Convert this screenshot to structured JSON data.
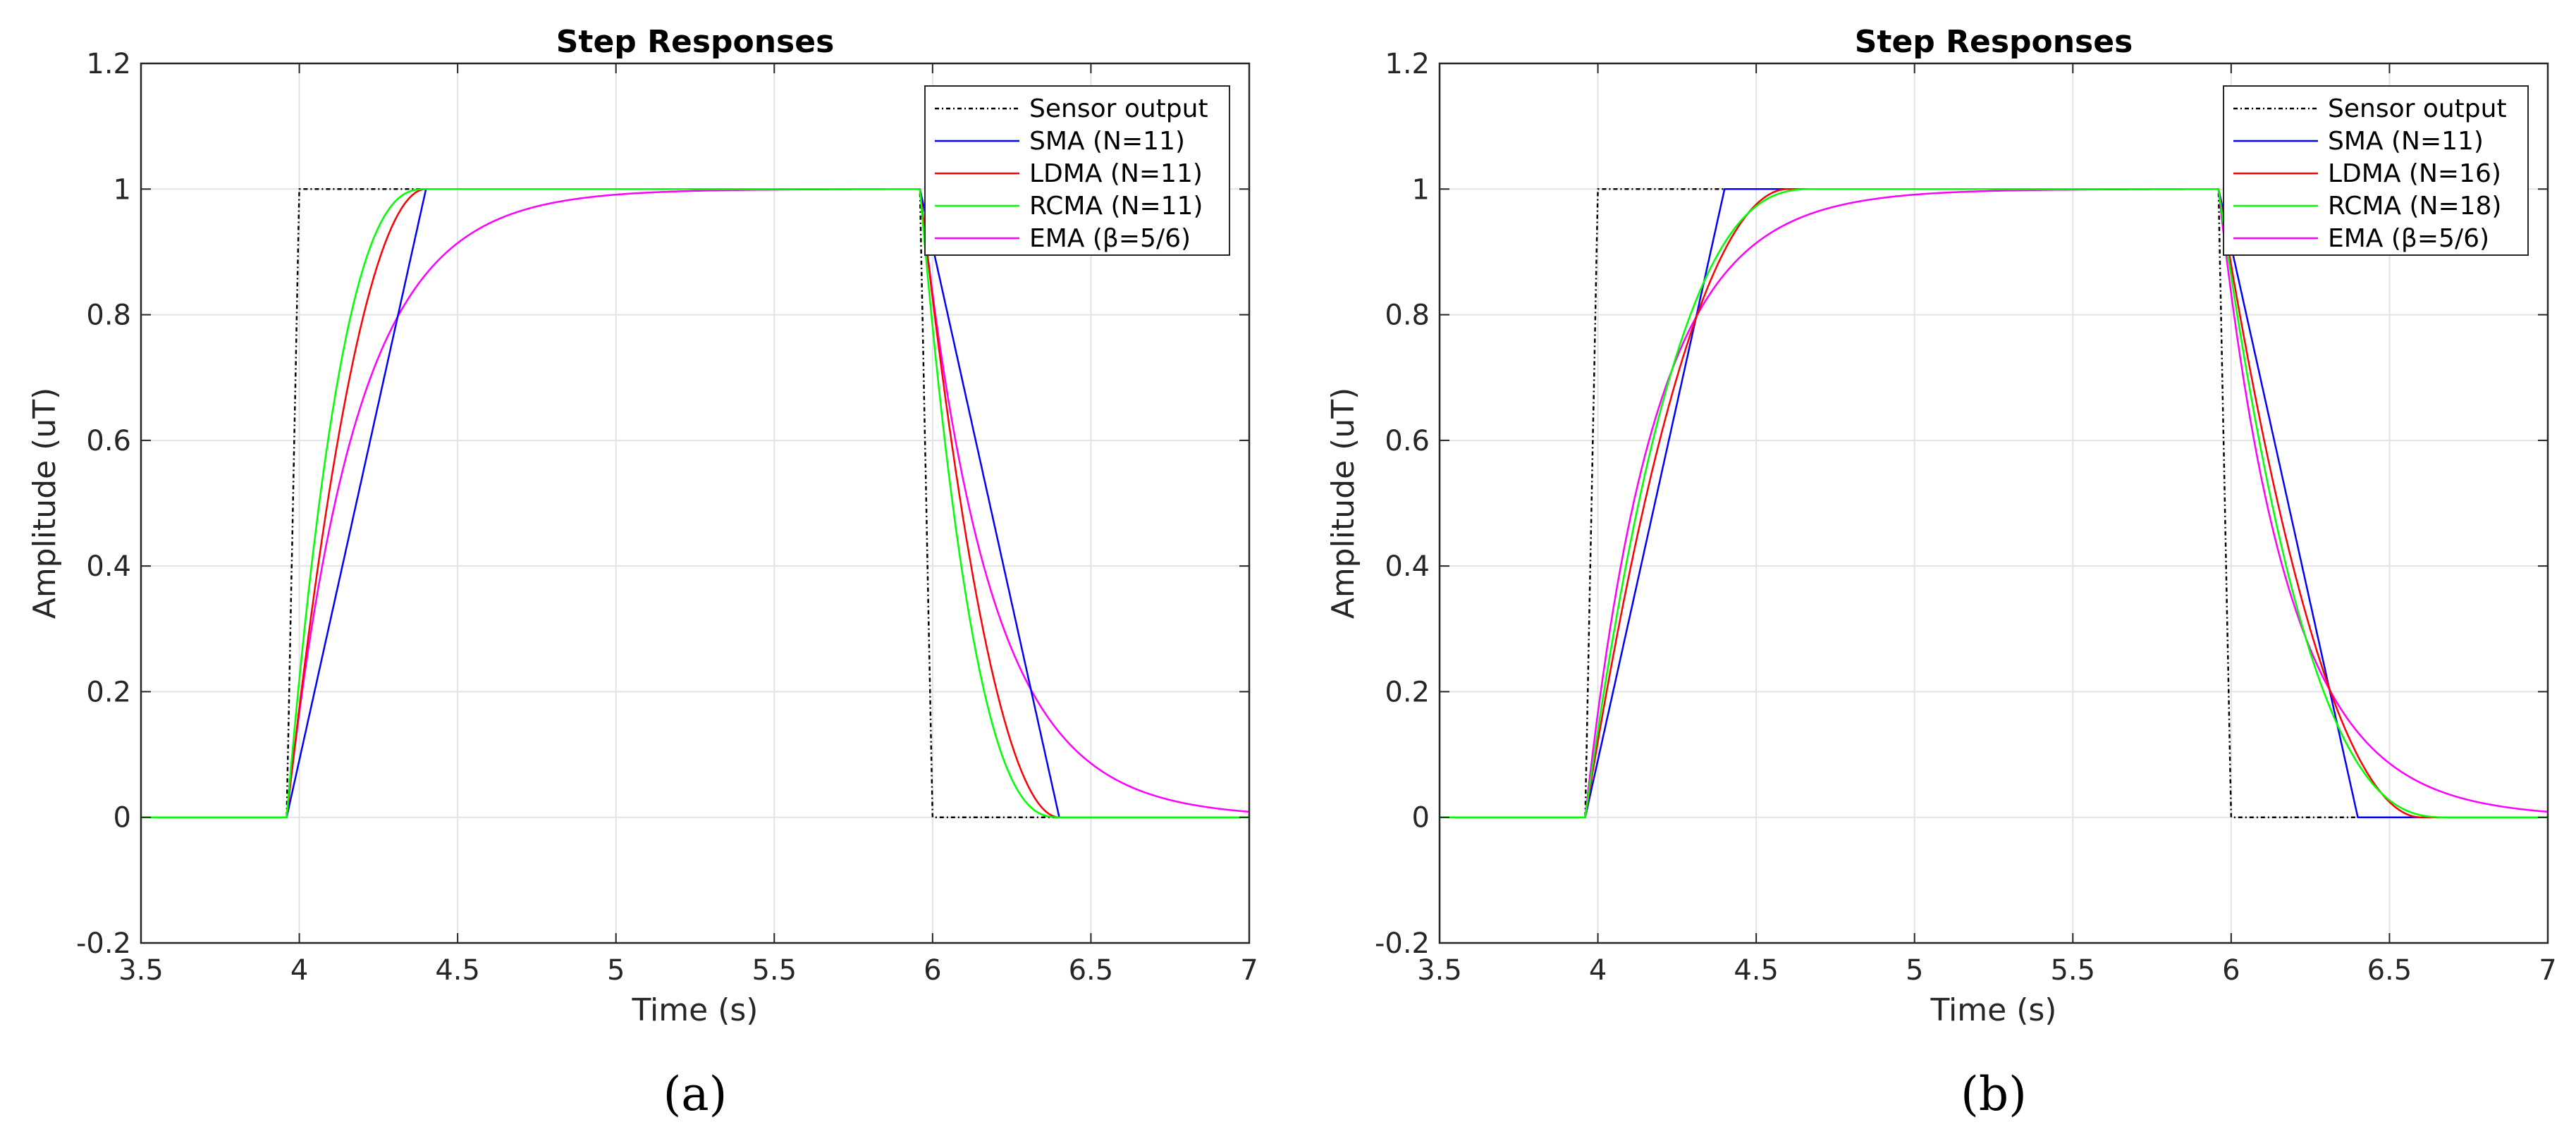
{
  "chart_data": [
    {
      "type": "line",
      "panel_label": "(a)",
      "title": "Step Responses",
      "xlabel": "Time (s)",
      "ylabel": "Amplitude (uT)",
      "xlim": [
        3.5,
        7
      ],
      "ylim": [
        -0.2,
        1.2
      ],
      "xticks": [
        3.5,
        4,
        4.5,
        5,
        5.5,
        6,
        6.5,
        7
      ],
      "xtick_labels": [
        "3.5",
        "4",
        "4.5",
        "5",
        "5.5",
        "6",
        "6.5",
        "7"
      ],
      "yticks": [
        -0.2,
        0,
        0.2,
        0.4,
        0.6,
        0.8,
        1,
        1.2
      ],
      "ytick_labels": [
        "-0.2",
        "0",
        "0.2",
        "0.4",
        "0.6",
        "0.8",
        "1",
        "1.2"
      ],
      "grid": true,
      "legend_position": "top-right",
      "series": [
        {
          "name": "Sensor output",
          "kind": "step",
          "color": "#000000",
          "dash": "dashdot",
          "t_on": 3.96,
          "t_on_end": 4.0,
          "t_off": 5.96,
          "t_off_end": 6.0
        },
        {
          "name": "SMA (N=11)",
          "kind": "sma",
          "color": "#0000ff",
          "t_on": 3.96,
          "rise": 0.44
        },
        {
          "name": "LDMA (N=11)",
          "kind": "ldma",
          "color": "#ff0000",
          "t_on": 3.96,
          "rise": 0.44
        },
        {
          "name": "RCMA (N=11)",
          "kind": "rcma",
          "color": "#00ff00",
          "t_on": 3.96,
          "rise": 0.44
        },
        {
          "name": "EMA (β=5/6)",
          "kind": "ema",
          "color": "#ff00ff",
          "t_on": 3.96,
          "tau": 0.22
        }
      ]
    },
    {
      "type": "line",
      "panel_label": "(b)",
      "title": "Step Responses",
      "xlabel": "Time (s)",
      "ylabel": "Amplitude (uT)",
      "xlim": [
        3.5,
        7
      ],
      "ylim": [
        -0.2,
        1.2
      ],
      "xticks": [
        3.5,
        4,
        4.5,
        5,
        5.5,
        6,
        6.5,
        7
      ],
      "xtick_labels": [
        "3.5",
        "4",
        "4.5",
        "5",
        "5.5",
        "6",
        "6.5",
        "7"
      ],
      "yticks": [
        -0.2,
        0,
        0.2,
        0.4,
        0.6,
        0.8,
        1,
        1.2
      ],
      "ytick_labels": [
        "-0.2",
        "0",
        "0.2",
        "0.4",
        "0.6",
        "0.8",
        "1",
        "1.2"
      ],
      "grid": true,
      "legend_position": "top-right",
      "series": [
        {
          "name": "Sensor output",
          "kind": "step",
          "color": "#000000",
          "dash": "dashdot",
          "t_on": 3.96,
          "t_on_end": 4.0,
          "t_off": 5.96,
          "t_off_end": 6.0
        },
        {
          "name": "SMA (N=11)",
          "kind": "sma",
          "color": "#0000ff",
          "t_on": 3.96,
          "rise": 0.44
        },
        {
          "name": "LDMA (N=16)",
          "kind": "ldma",
          "color": "#ff0000",
          "t_on": 3.96,
          "rise": 0.64
        },
        {
          "name": "RCMA (N=18)",
          "kind": "rcma",
          "color": "#00ff00",
          "t_on": 3.96,
          "rise": 0.72
        },
        {
          "name": "EMA (β=5/6)",
          "kind": "ema",
          "color": "#ff00ff",
          "t_on": 3.96,
          "tau": 0.22
        }
      ]
    }
  ]
}
